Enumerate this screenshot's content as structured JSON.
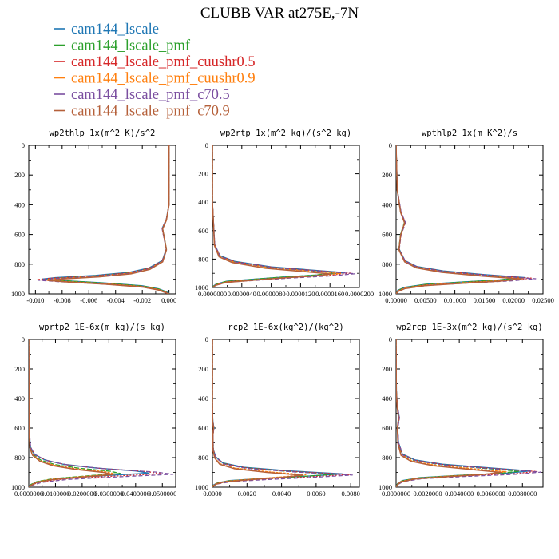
{
  "chart_data": {
    "type": "line",
    "title": "CLUBB VAR at275E,-7N",
    "legend_position": "top-left",
    "series": [
      {
        "name": "cam144_lscale",
        "color": "#1f77b4"
      },
      {
        "name": "cam144_lscale_pmf",
        "color": "#2ca02c"
      },
      {
        "name": "cam144_lscale_pmf_cuushr0.5",
        "color": "#d62728"
      },
      {
        "name": "cam144_lscale_pmf_cuushr0.9",
        "color": "#ff7f0e"
      },
      {
        "name": "cam144_lscale_pmf_c70.5",
        "color": "#7b4fa0"
      },
      {
        "name": "cam144_lscale_pmf_c70.9",
        "color": "#b5603a"
      }
    ],
    "panels": [
      {
        "title": "wp2thlp   1x(m^2 K)/s^2",
        "xlim": [
          -0.0105,
          0.0005
        ],
        "ylim": [
          1000,
          0
        ],
        "y_ticks": [
          "0",
          "200",
          "400",
          "600",
          "800",
          "1000"
        ],
        "x_ticks": [
          "-0.010",
          "-0.008",
          "-0.006",
          "-0.004",
          "-0.002",
          "0.000"
        ],
        "profile": {
          "p": [
            0,
            200,
            400,
            500,
            560,
            700,
            780,
            830,
            860,
            880,
            895,
            905,
            915,
            930,
            950,
            970,
            990,
            1000
          ],
          "v": [
            0.0,
            0.0,
            0.0,
            -0.0002,
            -0.0005,
            -0.0002,
            -0.0005,
            -0.0015,
            -0.003,
            -0.0055,
            -0.0085,
            -0.0095,
            -0.008,
            -0.005,
            -0.002,
            -0.0008,
            -0.0002,
            0.0
          ]
        },
        "spread": [
          1.0,
          0.96,
          1.04,
          0.98,
          1.03,
          0.95
        ]
      },
      {
        "title": "wp2rtp   1x(m^2 kg)/(s^2 kg)",
        "xlim": [
          0,
          2e-05
        ],
        "ylim": [
          1000,
          0
        ],
        "y_ticks": [
          "0",
          "200",
          "400",
          "600",
          "800",
          "1000"
        ],
        "x_ticks": [
          "0.0000000",
          "0.0000040",
          "0.0000080",
          "0.0000120",
          "0.0000160",
          "0.0000200"
        ],
        "profile": {
          "p": [
            0,
            400,
            600,
            700,
            780,
            820,
            860,
            880,
            900,
            915,
            930,
            945,
            960,
            980,
            1000
          ],
          "v": [
            0.0,
            0.0,
            2e-07,
            3e-07,
            1e-06,
            3e-06,
            8e-06,
            1.3e-05,
            1.8e-05,
            1.5e-05,
            1e-05,
            6e-06,
            2e-06,
            5e-07,
            0.0
          ]
        },
        "spread": [
          1.0,
          0.93,
          1.05,
          0.97,
          1.08,
          0.9
        ]
      },
      {
        "title": "wpthlp2   1x(m K^2)/s",
        "xlim": [
          0,
          0.025
        ],
        "ylim": [
          1000,
          0
        ],
        "y_ticks": [
          "0",
          "200",
          "400",
          "600",
          "800",
          "1000"
        ],
        "x_ticks": [
          "0.00000",
          "0.00500",
          "0.01000",
          "0.01500",
          "0.02000",
          "0.02500"
        ],
        "profile": {
          "p": [
            0,
            300,
            450,
            520,
            600,
            700,
            780,
            820,
            850,
            875,
            895,
            910,
            925,
            940,
            960,
            980,
            1000
          ],
          "v": [
            0.0,
            0.0002,
            0.0008,
            0.0015,
            0.0008,
            0.0005,
            0.0015,
            0.0035,
            0.008,
            0.015,
            0.022,
            0.018,
            0.011,
            0.005,
            0.0015,
            0.0003,
            0.0
          ]
        },
        "spread": [
          1.0,
          0.95,
          1.05,
          0.98,
          1.08,
          0.97
        ]
      },
      {
        "title": "wprtp2   1E-6x(m kg)/(s kg)",
        "xlim": [
          0,
          0.055
        ],
        "ylim": [
          1000,
          0
        ],
        "y_ticks": [
          "0",
          "200",
          "400",
          "600",
          "800",
          "1000"
        ],
        "x_ticks": [
          "0.0000000",
          "0.0100000",
          "0.0200000",
          "0.0300000",
          "0.0400000",
          "0.0500000"
        ],
        "profile": {
          "p": [
            0,
            300,
            500,
            650,
            730,
            780,
            820,
            850,
            875,
            895,
            910,
            925,
            945,
            965,
            985,
            1000
          ],
          "v": [
            0.0,
            0.0001,
            0.0002,
            0.0003,
            0.0006,
            0.002,
            0.006,
            0.013,
            0.025,
            0.04,
            0.045,
            0.03,
            0.012,
            0.004,
            0.001,
            0.0
          ]
        },
        "spread": [
          1.0,
          0.76,
          1.1,
          0.72,
          1.2,
          0.7
        ]
      },
      {
        "title": "rcp2   1E-6x(kg^2)/(kg^2)",
        "xlim": [
          0,
          0.0085
        ],
        "ylim": [
          1000,
          0
        ],
        "y_ticks": [
          "0",
          "200",
          "400",
          "600",
          "800",
          "1000"
        ],
        "x_ticks": [
          "0.0000",
          "0.0020",
          "0.0040",
          "0.0060",
          "0.0080"
        ],
        "profile": {
          "p": [
            0,
            450,
            550,
            600,
            650,
            750,
            800,
            840,
            870,
            895,
            915,
            930,
            945,
            960,
            975,
            990,
            1000
          ],
          "v": [
            0.0,
            0.0,
            2e-05,
            8e-05,
            3e-05,
            5e-05,
            0.0002,
            0.0006,
            0.0018,
            0.0045,
            0.0075,
            0.0055,
            0.003,
            0.001,
            0.0003,
            5e-05,
            0.0
          ]
        },
        "spread": [
          1.0,
          0.95,
          1.06,
          0.72,
          1.08,
          0.7
        ]
      },
      {
        "title": "wp2rcp   1E-3x(m^2 kg)/(s^2 kg)",
        "xlim": [
          0,
          0.0093
        ],
        "ylim": [
          1000,
          0
        ],
        "y_ticks": [
          "0",
          "200",
          "400",
          "600",
          "800",
          "1000"
        ],
        "x_ticks": [
          "0.0000000",
          "0.0020000",
          "0.0040000",
          "0.0060000",
          "0.0080000"
        ],
        "profile": {
          "p": [
            0,
            350,
            450,
            530,
            600,
            700,
            780,
            820,
            850,
            875,
            895,
            910,
            925,
            940,
            960,
            980,
            1000
          ],
          "v": [
            0.0,
            2e-05,
            8e-05,
            0.0002,
            0.0001,
            0.00015,
            0.0004,
            0.0012,
            0.003,
            0.006,
            0.0085,
            0.007,
            0.004,
            0.0015,
            0.0004,
            0.0001,
            0.0
          ]
        },
        "spread": [
          1.0,
          0.92,
          1.05,
          0.82,
          1.08,
          0.78
        ]
      }
    ]
  }
}
